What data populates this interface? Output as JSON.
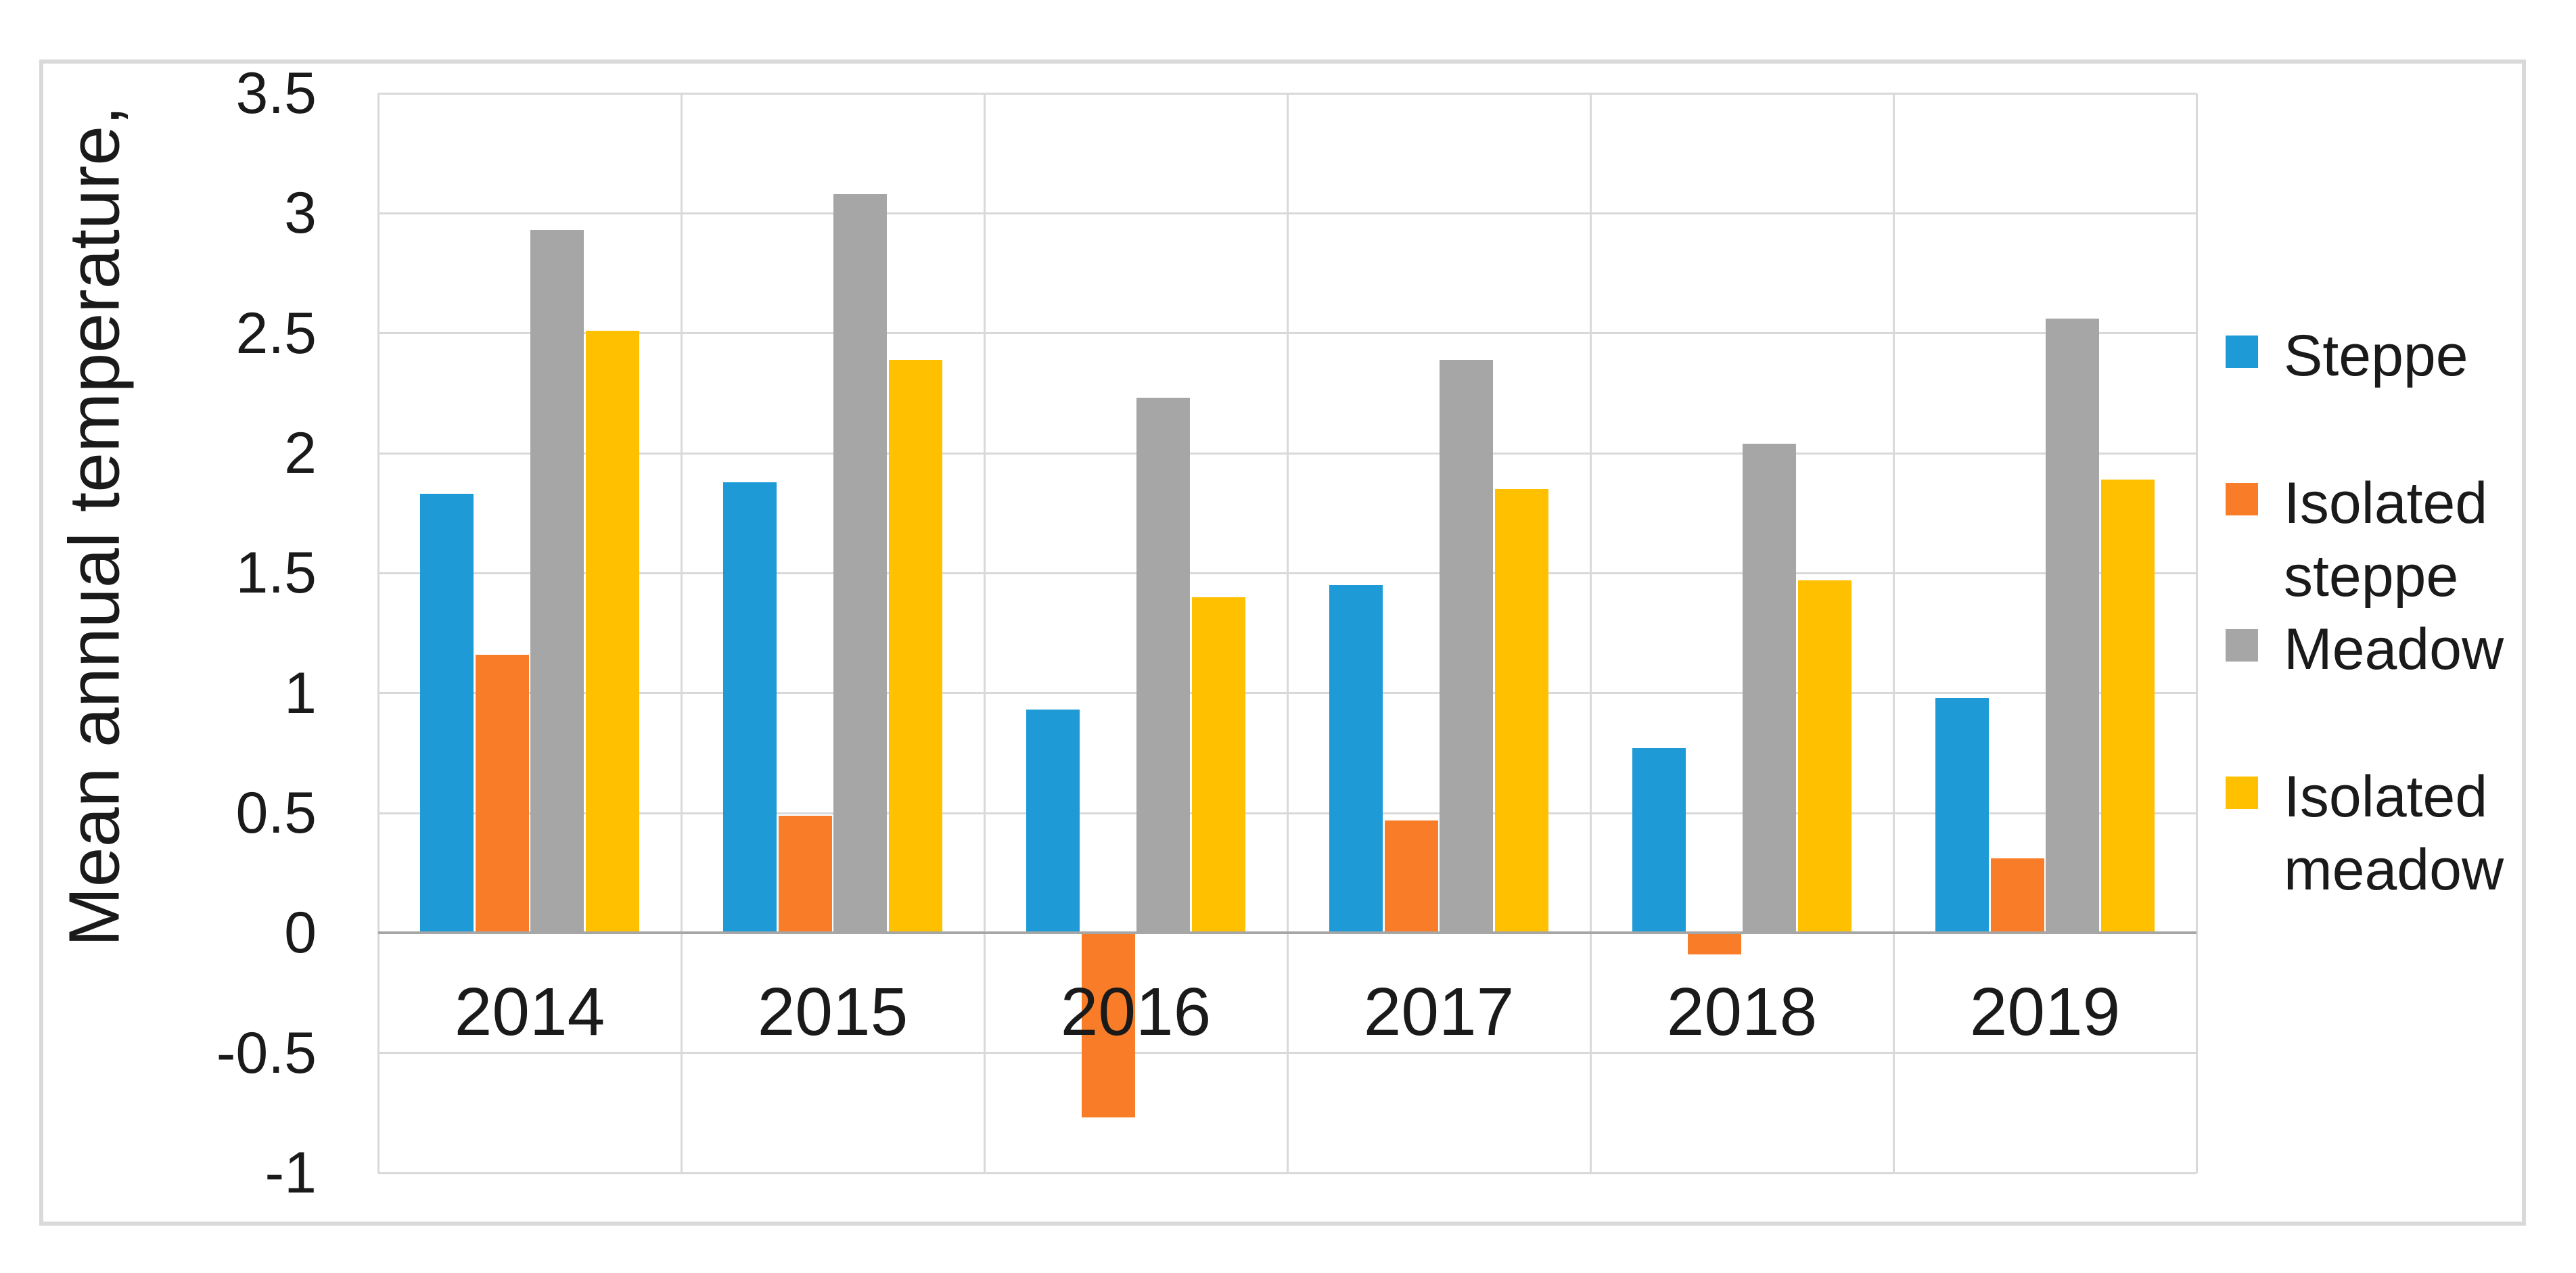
{
  "chart_data": {
    "type": "bar",
    "title": "",
    "xlabel": "",
    "ylabel": "Mean annual temperature,",
    "categories": [
      "2014",
      "2015",
      "2016",
      "2017",
      "2018",
      "2019"
    ],
    "series": [
      {
        "name": "Steppe",
        "color": "#1e9bd7",
        "values": [
          1.83,
          1.88,
          0.93,
          1.45,
          0.77,
          0.98
        ]
      },
      {
        "name": "Isolated steppe",
        "color": "#f97d28",
        "values": [
          1.16,
          0.49,
          -0.77,
          0.47,
          -0.09,
          0.31
        ]
      },
      {
        "name": "Meadow",
        "color": "#a6a6a6",
        "values": [
          2.93,
          3.08,
          2.23,
          2.39,
          2.04,
          2.56
        ]
      },
      {
        "name": "Isolated meadow",
        "color": "#ffc000",
        "values": [
          2.51,
          2.39,
          1.4,
          1.85,
          1.47,
          1.89
        ]
      }
    ],
    "ylim": [
      -1,
      3.5
    ],
    "ytick_step": 0.5,
    "ytick_labels": [
      "3.5",
      "3",
      "2.5",
      "2",
      "1.5",
      "1",
      "0.5",
      "0",
      "-0.5",
      "-1"
    ],
    "grid": true,
    "legend_position": "right"
  },
  "legend": {
    "entries": [
      {
        "label": "Steppe",
        "lines": "Steppe"
      },
      {
        "label": "Isolated steppe",
        "lines": "Isolated\nsteppe"
      },
      {
        "label": "Meadow",
        "lines": "Meadow"
      },
      {
        "label": "Isolated meadow",
        "lines": "Isolated\nmeadow"
      }
    ]
  }
}
